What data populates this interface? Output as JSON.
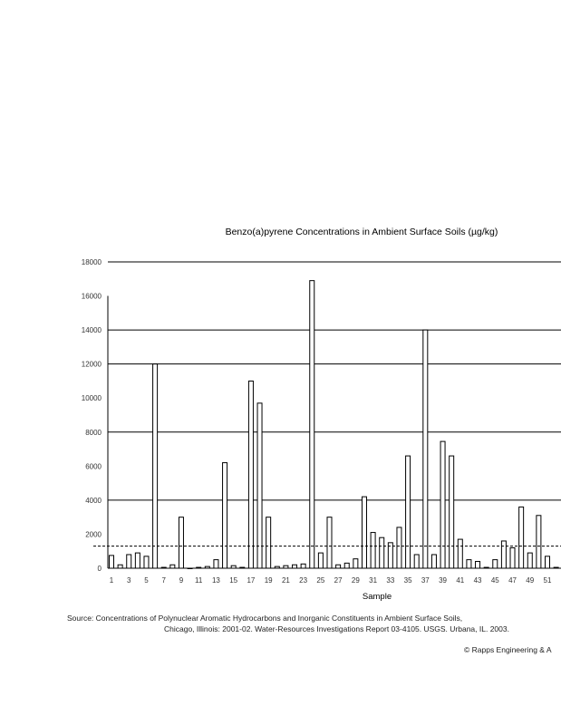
{
  "chart_data": {
    "type": "bar",
    "title": "Benzo(a)pyrene Concentrations in Ambient Surface Soils (µg/kg)",
    "xlabel": "Sample",
    "ylabel": "",
    "ylim": [
      0,
      18000
    ],
    "yticks": [
      0,
      2000,
      4000,
      6000,
      8000,
      10000,
      12000,
      14000,
      16000,
      18000
    ],
    "ytick_labels": [
      "0",
      "2000",
      "4000",
      "6000",
      "8000",
      "10000",
      "12000",
      "14000",
      "16000",
      "18000"
    ],
    "grid_values": [
      4000,
      8000,
      12000,
      14000,
      18000
    ],
    "x_tick_labels": [
      "1",
      "3",
      "5",
      "7",
      "9",
      "11",
      "13",
      "15",
      "17",
      "19",
      "21",
      "23",
      "25",
      "27",
      "29",
      "31",
      "33",
      "35",
      "37",
      "39",
      "41",
      "43",
      "45",
      "47",
      "49",
      "51"
    ],
    "categories": [
      "1",
      "2",
      "3",
      "4",
      "5",
      "6",
      "7",
      "8",
      "9",
      "10",
      "11",
      "12",
      "13",
      "14",
      "15",
      "16",
      "17",
      "18",
      "19",
      "20",
      "21",
      "22",
      "23",
      "24",
      "25",
      "26",
      "27",
      "28",
      "29",
      "30",
      "31",
      "32",
      "33",
      "34",
      "35",
      "36",
      "37",
      "38",
      "39",
      "40",
      "41",
      "42",
      "43",
      "44",
      "45",
      "46",
      "47",
      "48",
      "49",
      "50",
      "51",
      "52"
    ],
    "values": [
      750,
      200,
      800,
      900,
      700,
      12000,
      50,
      200,
      3000,
      0,
      50,
      100,
      500,
      6200,
      150,
      50,
      11000,
      9700,
      3000,
      100,
      150,
      200,
      250,
      16900,
      900,
      3000,
      200,
      300,
      550,
      4200,
      2100,
      1800,
      1500,
      2400,
      6600,
      800,
      14000,
      800,
      7450,
      6600,
      1700,
      500,
      400,
      50,
      500,
      1600,
      1200,
      3600,
      900,
      3100,
      700,
      50
    ],
    "reference_line": {
      "value": 1300,
      "style": "dashed"
    },
    "legend": "none"
  },
  "source": {
    "line1": "Source:  Concentrations of Polynuclear Aromatic Hydrocarbons and Inorganic Constituents in Ambient Surface Soils,",
    "line2": "Chicago, Illinois: 2001-02. Water-Resources Investigations Report 03-4105. USGS. Urbana, IL. 2003.",
    "copyright": "© Rapps Engineering & A"
  }
}
